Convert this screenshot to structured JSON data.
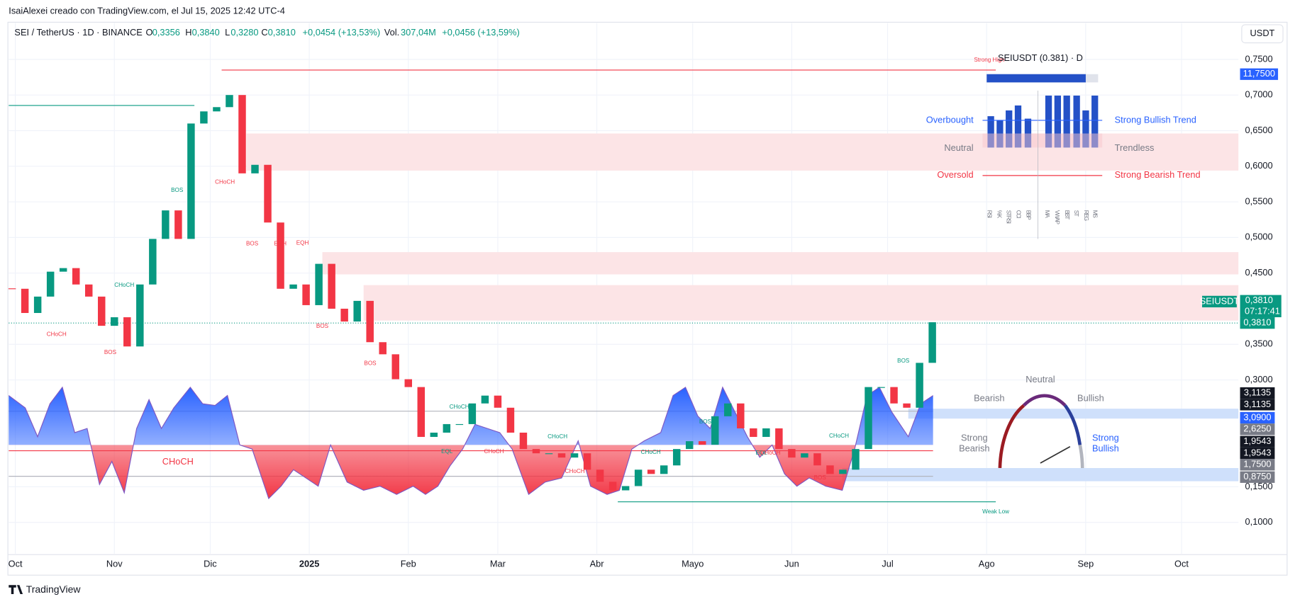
{
  "header": {
    "caption": "IsaiAlexei creado con TradingView.com, el Jul 15, 2025 12:42 UTC-4"
  },
  "symbol_bar": {
    "symbol": "SEI / TetherUS · 1D · BINANCE",
    "o_label": "O",
    "open": "0,3356",
    "h_label": "H",
    "high": "0,3840",
    "l_label": "L",
    "low": "0,3280",
    "c_label": "C",
    "close": "0,3810",
    "change": "+0,0454 (+13,53%)",
    "vol_label": "Vol.",
    "volume": "307,04M",
    "vol_change": "+0,0456 (+13,59%)"
  },
  "currency": "USDT",
  "chart_data": {
    "type": "candlestick",
    "x": [
      -1,
      3,
      7,
      11,
      15,
      19,
      23,
      27,
      31,
      35,
      39,
      43,
      47,
      51,
      55,
      59,
      63,
      67,
      71,
      75,
      79,
      83,
      87,
      91,
      95,
      99,
      103,
      107,
      111,
      115,
      119,
      123,
      127,
      131,
      135,
      139,
      143,
      147,
      151,
      155,
      159,
      163,
      167,
      171,
      175,
      179,
      183,
      187,
      191,
      195,
      199,
      203,
      207,
      211,
      215,
      219,
      223,
      227,
      231,
      235,
      239,
      243,
      247,
      251,
      255,
      259,
      263,
      267,
      271,
      275,
      279,
      283,
      287
    ],
    "values": [
      0.428,
      0.394,
      0.417,
      0.452,
      0.457,
      0.434,
      0.417,
      0.376,
      0.388,
      0.347,
      0.434,
      0.498,
      0.538,
      0.498,
      0.66,
      0.677,
      0.683,
      0.7,
      0.59,
      0.602,
      0.521,
      0.428,
      0.434,
      0.405,
      0.463,
      0.4,
      0.382,
      0.411,
      0.353,
      0.336,
      0.301,
      0.29,
      0.22,
      0.226,
      0.238,
      0.238,
      0.267,
      0.278,
      0.261,
      0.226,
      0.203,
      0.197,
      0.197,
      0.191,
      0.197,
      0.174,
      0.157,
      0.145,
      0.151,
      0.174,
      0.168,
      0.18,
      0.203,
      0.214,
      0.209,
      0.249,
      0.267,
      0.232,
      0.22,
      0.232,
      0.203,
      0.191,
      0.197,
      0.18,
      0.168,
      0.174,
      0.203,
      0.29,
      0.29,
      0.267,
      0.261,
      0.324,
      0.381
    ],
    "up_color": "#089981",
    "down_color": "#f23645",
    "xlim": [
      -2.07,
      382.8
    ],
    "ylim": [
      0.056,
      0.801
    ],
    "xticks": [
      {
        "value": 0,
        "label": "Oct"
      },
      {
        "value": 31,
        "label": "Nov"
      },
      {
        "value": 61,
        "label": "Dic"
      },
      {
        "value": 92,
        "label": "2025"
      },
      {
        "value": 123,
        "label": "Feb"
      },
      {
        "value": 151,
        "label": "Mar"
      },
      {
        "value": 182,
        "label": "Abr"
      },
      {
        "value": 212,
        "label": "Mayo"
      },
      {
        "value": 243,
        "label": "Jun"
      },
      {
        "value": 273,
        "label": "Jul"
      },
      {
        "value": 304,
        "label": "Ago"
      },
      {
        "value": 335,
        "label": "Sep"
      },
      {
        "value": 365,
        "label": "Oct"
      }
    ],
    "yticks": [
      {
        "value": 0.1,
        "label": "0,1000"
      },
      {
        "value": 0.15,
        "label": "0,1500"
      },
      {
        "value": 0.3,
        "label": "0,3000"
      },
      {
        "value": 0.35,
        "label": "0,3500"
      },
      {
        "value": 0.45,
        "label": "0,4500"
      },
      {
        "value": 0.5,
        "label": "0,5000"
      },
      {
        "value": 0.55,
        "label": "0,5500"
      },
      {
        "value": 0.6,
        "label": "0,6000"
      },
      {
        "value": 0.65,
        "label": "0,6500"
      },
      {
        "value": 0.7,
        "label": "0,7000"
      },
      {
        "value": 0.75,
        "label": "0,7500"
      }
    ],
    "grid": true
  },
  "price_labels": {
    "top": "11,7500",
    "symbol": "SEIUSDT",
    "last": "0,3810",
    "countdown": "07:17:41",
    "last2": "0,3810",
    "osc": [
      "3,1135",
      "3,1135",
      "3,0900",
      "2,6250",
      "1,9543",
      "1,9543",
      "1,7500",
      "0,8750"
    ]
  },
  "widget": {
    "title": "SEIUSDT (0.381) · D",
    "overbought": "Overbought",
    "neutral": "Neutral",
    "oversold": "Oversold",
    "strong_bull": "Strong Bullish Trend",
    "trendless": "Trendless",
    "strong_bear": "Strong Bearish Trend",
    "indicators": [
      "RSI",
      "%K",
      "STRSI",
      "CCI",
      "BBP",
      "MA",
      "VWAP",
      "BBT",
      "ST",
      "REG",
      "MS"
    ]
  },
  "gauge": {
    "neutral": "Neutral",
    "bearish": "Bearish",
    "bullish": "Bullish",
    "strong_bearish": [
      "Strong",
      "Bearish"
    ],
    "strong_bullish": [
      "Strong",
      "Bullish"
    ]
  },
  "annotations": [
    "CHoCH",
    "BOS",
    "CHoCH",
    "BOS",
    "CHoCH",
    "BOS",
    "EQH",
    "EQH",
    "BOS",
    "BOS",
    "CHoCH",
    "EQL",
    "CHoCH",
    "CHoCH",
    "CHoCH",
    "CHoCH",
    "BOS",
    "EQL",
    "CHoCH",
    "CHoCH",
    "BOS",
    "BOS",
    "CHoCH",
    "Weak Low",
    "Strong High"
  ],
  "footer": {
    "brand": "TradingView"
  }
}
